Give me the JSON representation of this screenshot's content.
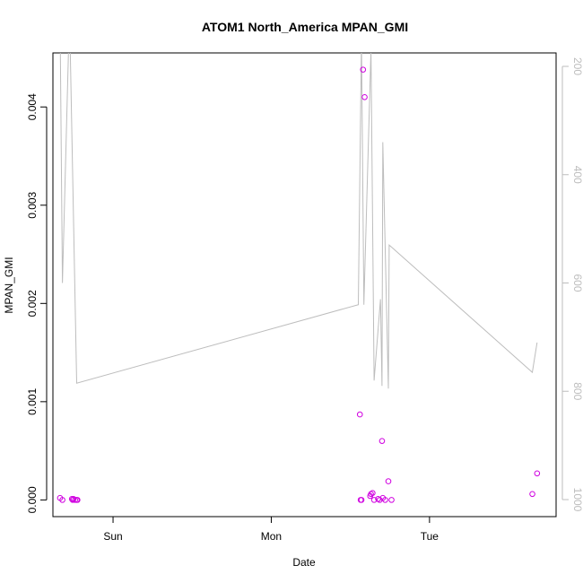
{
  "chart_data": {
    "type": "scatter",
    "title": "ATOM1 North_America MPAN_GMI",
    "xlabel": "Date",
    "ylabel": "MPAN_GMI",
    "x_ticks": [
      "Sun",
      "Mon",
      "Tue"
    ],
    "x_tick_days": [
      1,
      2,
      3
    ],
    "xlim_days": [
      0.62,
      3.8
    ],
    "ylim": [
      -0.00017,
      0.00455
    ],
    "y_ticks": [
      0.0,
      0.001,
      0.002,
      0.003,
      0.004
    ],
    "y_tick_labels": [
      "0.000",
      "0.001",
      "0.002",
      "0.003",
      "0.004"
    ],
    "y2_ticks": [
      200,
      400,
      600,
      800,
      1000
    ],
    "y2_tick_labels": [
      "200",
      "400",
      "600",
      "800",
      "1000"
    ],
    "y2_axis_reversed": true,
    "y2_axis_color": "#bdbdbd",
    "grid": false,
    "series": [
      {
        "marker": "open-circle",
        "color": "#d000e0",
        "points_day_value": [
          [
            0.665,
            2e-05
          ],
          [
            0.68,
            0.0
          ],
          [
            0.74,
            1e-05
          ],
          [
            0.75,
            1e-05
          ],
          [
            0.76,
            0.0
          ],
          [
            0.77,
            0.0
          ],
          [
            0.775,
            0.0
          ],
          [
            0.745,
            0.0
          ],
          [
            2.56,
            0.00087
          ],
          [
            2.565,
            0.0
          ],
          [
            2.57,
            0.0
          ],
          [
            2.58,
            0.00438
          ],
          [
            2.59,
            0.0041
          ],
          [
            2.625,
            4e-05
          ],
          [
            2.63,
            6e-05
          ],
          [
            2.64,
            7e-05
          ],
          [
            2.65,
            0.0
          ],
          [
            2.675,
            1e-05
          ],
          [
            2.685,
            0.0
          ],
          [
            2.7,
            0.0006
          ],
          [
            2.705,
            2e-05
          ],
          [
            2.72,
            0.0
          ],
          [
            2.74,
            0.00019
          ],
          [
            2.76,
            0.0
          ],
          [
            3.65,
            6e-05
          ],
          [
            3.68,
            0.00027
          ]
        ]
      },
      {
        "marker": "line",
        "color": "#bdbdbd",
        "axis": "right",
        "points_day_pressure": [
          [
            0.665,
            100
          ],
          [
            0.68,
            600
          ],
          [
            0.725,
            100
          ],
          [
            0.77,
            785
          ],
          [
            2.55,
            640
          ],
          [
            2.57,
            150
          ],
          [
            2.585,
            640
          ],
          [
            2.63,
            170
          ],
          [
            2.65,
            780
          ],
          [
            2.69,
            630
          ],
          [
            2.7,
            790
          ],
          [
            2.705,
            340
          ],
          [
            2.74,
            795
          ],
          [
            2.745,
            530
          ],
          [
            2.765,
            535
          ],
          [
            3.65,
            765
          ],
          [
            3.68,
            710
          ]
        ]
      }
    ]
  }
}
